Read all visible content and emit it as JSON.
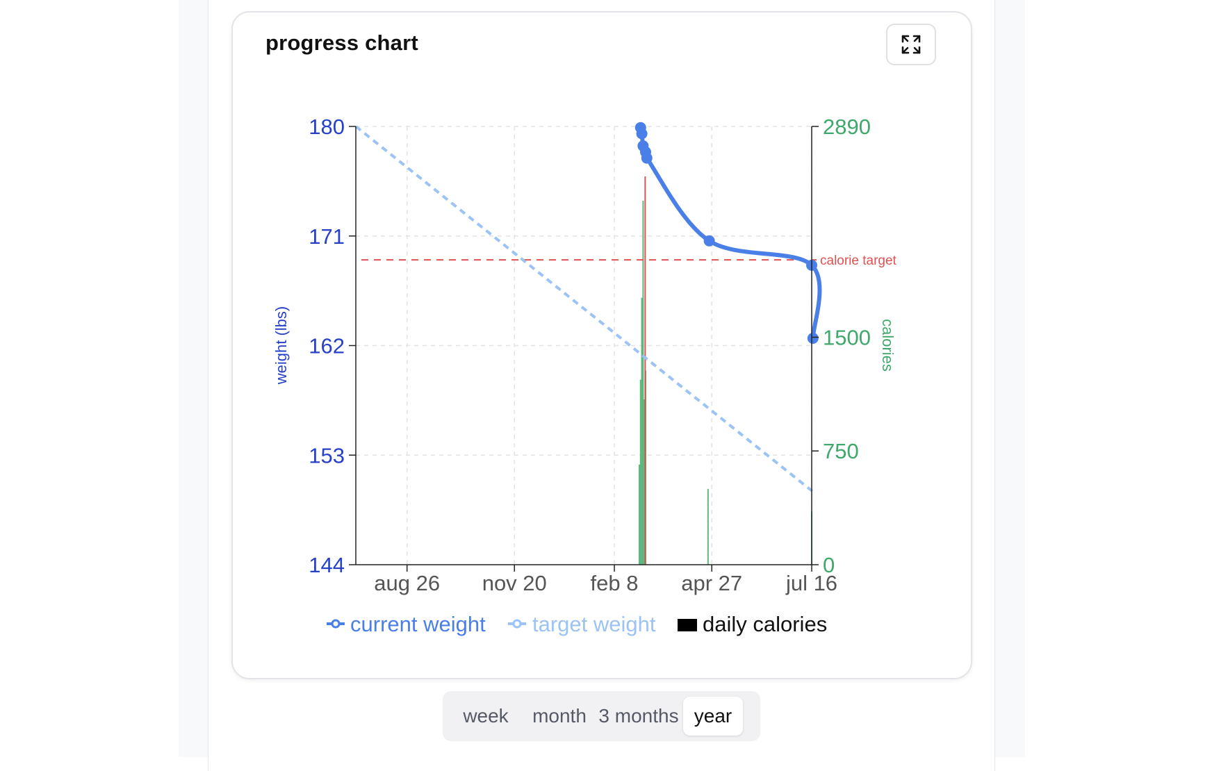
{
  "card": {
    "title": "progress chart",
    "expand_icon": "expand-icon"
  },
  "range_selector": {
    "options": [
      "week",
      "month",
      "3 months",
      "year"
    ],
    "selected": "year"
  },
  "colors": {
    "current_weight": "#4a7fe8",
    "target_weight": "#9cc3f5",
    "calories": "#5cb87c",
    "calorie_target": "#e05252",
    "left_axis": "#2740c8",
    "right_axis": "#3fa86a"
  },
  "chart_data": {
    "type": "line",
    "title": "",
    "x_ticks": [
      "aug 26",
      "nov 20",
      "feb 8",
      "apr 27",
      "jul 16"
    ],
    "y_left": {
      "label": "weight (lbs)",
      "ticks": [
        144,
        153,
        162,
        171,
        180
      ],
      "range": [
        144,
        180
      ]
    },
    "y_right": {
      "label": "calories",
      "ticks": [
        0,
        750,
        1500,
        2890
      ],
      "range": [
        0,
        2890
      ]
    },
    "calorie_target": {
      "label": "calorie target",
      "value": 2010
    },
    "series": [
      {
        "name": "current weight",
        "kind": "line-markers",
        "points": [
          {
            "x": "2025-03-01",
            "y": 179.9
          },
          {
            "x": "2025-03-02",
            "y": 179.4
          },
          {
            "x": "2025-03-03",
            "y": 178.4
          },
          {
            "x": "2025-03-05",
            "y": 177.9
          },
          {
            "x": "2025-03-06",
            "y": 177.4
          },
          {
            "x": "2025-04-25",
            "y": 170.6
          },
          {
            "x": "2025-07-16",
            "y": 168.6
          },
          {
            "x": "2025-07-17",
            "y": 162.6
          }
        ]
      },
      {
        "name": "target weight",
        "kind": "dashed-line",
        "points": [
          {
            "x": "2024-07-16",
            "y": 180
          },
          {
            "x": "2025-07-17",
            "y": 150
          }
        ]
      },
      {
        "name": "daily calories",
        "kind": "bar",
        "points": [
          {
            "x": "2025-02-28",
            "y": 660
          },
          {
            "x": "2025-03-01",
            "y": 1220
          },
          {
            "x": "2025-03-02",
            "y": 1760
          },
          {
            "x": "2025-03-03",
            "y": 2400
          },
          {
            "x": "2025-03-04",
            "y": 1090
          },
          {
            "x": "2025-03-05",
            "y": 1280
          },
          {
            "x": "2025-04-24",
            "y": 500
          },
          {
            "x": "2025-07-16",
            "y": 350
          }
        ]
      }
    ],
    "legend": {
      "position": "bottom",
      "items": [
        "current weight",
        "target weight",
        "daily calories"
      ]
    },
    "grid": true
  }
}
